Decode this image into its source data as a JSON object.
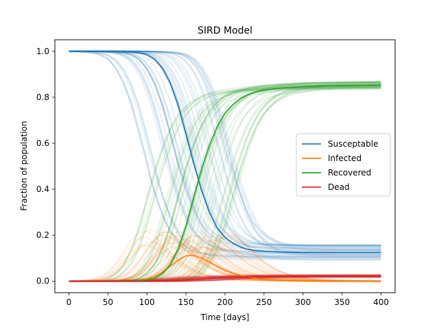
{
  "chart_data": {
    "type": "line",
    "title": "SIRD Model",
    "xlabel": "Time [days]",
    "ylabel": "Fraction of population",
    "xlim": [
      -18,
      418
    ],
    "ylim": [
      -0.05,
      1.05
    ],
    "xticks": [
      0,
      50,
      100,
      150,
      200,
      250,
      300,
      350,
      400
    ],
    "yticks": [
      0.0,
      0.2,
      0.4,
      0.6,
      0.8,
      1.0
    ],
    "xtick_labels": [
      "0",
      "50",
      "100",
      "150",
      "200",
      "250",
      "300",
      "350",
      "400"
    ],
    "ytick_labels": [
      "0.0",
      "0.2",
      "0.4",
      "0.6",
      "0.8",
      "1.0"
    ],
    "grid": false,
    "legend_position": "center-right",
    "colors": {
      "Susceptable": "#1f77b4",
      "Infected": "#ff7f0e",
      "Recovered": "#2ca02c",
      "Dead": "#d62728"
    },
    "ensemble_band": true,
    "x": [
      0,
      25,
      50,
      60,
      70,
      80,
      90,
      100,
      110,
      120,
      130,
      140,
      150,
      160,
      170,
      180,
      190,
      200,
      210,
      220,
      230,
      240,
      250,
      260,
      270,
      280,
      300,
      325,
      350,
      375,
      400
    ],
    "series": [
      {
        "name": "Susceptable",
        "values": [
          1.0,
          1.0,
          1.0,
          0.999,
          0.998,
          0.996,
          0.993,
          0.985,
          0.965,
          0.925,
          0.86,
          0.765,
          0.64,
          0.51,
          0.395,
          0.3,
          0.232,
          0.19,
          0.165,
          0.148,
          0.138,
          0.133,
          0.13,
          0.128,
          0.127,
          0.126,
          0.125,
          0.125,
          0.125,
          0.125,
          0.125
        ]
      },
      {
        "name": "Infected",
        "values": [
          0.0,
          0.0,
          0.0,
          0.0,
          0.001,
          0.002,
          0.005,
          0.01,
          0.02,
          0.04,
          0.065,
          0.092,
          0.11,
          0.112,
          0.1,
          0.083,
          0.065,
          0.048,
          0.035,
          0.025,
          0.018,
          0.012,
          0.008,
          0.006,
          0.004,
          0.003,
          0.002,
          0.001,
          0.0,
          0.0,
          0.0
        ]
      },
      {
        "name": "Recovered",
        "values": [
          0.0,
          0.0,
          0.0,
          0.0,
          0.001,
          0.002,
          0.003,
          0.005,
          0.013,
          0.033,
          0.073,
          0.14,
          0.24,
          0.366,
          0.488,
          0.59,
          0.672,
          0.731,
          0.768,
          0.795,
          0.812,
          0.823,
          0.83,
          0.835,
          0.839,
          0.842,
          0.846,
          0.849,
          0.85,
          0.851,
          0.852
        ]
      },
      {
        "name": "Dead",
        "values": [
          0.0,
          0.0,
          0.0,
          0.0,
          0.0,
          0.0,
          0.0,
          0.0,
          0.001,
          0.002,
          0.003,
          0.004,
          0.006,
          0.008,
          0.01,
          0.012,
          0.014,
          0.016,
          0.017,
          0.018,
          0.019,
          0.02,
          0.02,
          0.021,
          0.021,
          0.021,
          0.022,
          0.022,
          0.022,
          0.022,
          0.022
        ]
      }
    ]
  }
}
